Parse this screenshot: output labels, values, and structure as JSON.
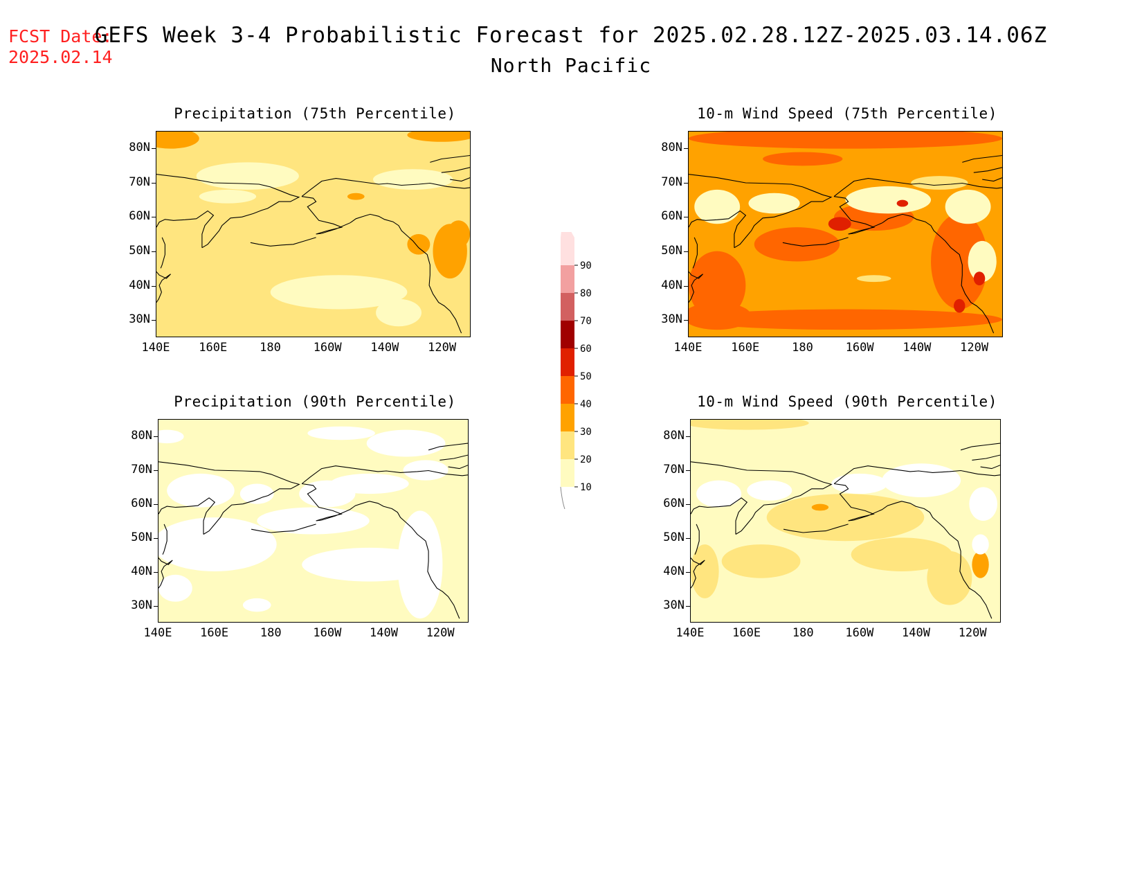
{
  "header": {
    "fcst_label": "FCST Date:",
    "fcst_date": "2025.02.14",
    "title": "GEFS Week 3-4 Probabilistic Forecast for 2025.02.28.12Z-2025.03.14.06Z",
    "region": "North Pacific"
  },
  "panels": [
    {
      "title": "Precipitation (75th Percentile)",
      "field": "precip75",
      "base_level": "20-30"
    },
    {
      "title": "10-m Wind Speed (75th Percentile)",
      "field": "wind75",
      "base_level": "30-40"
    },
    {
      "title": "Precipitation (90th Percentile)",
      "field": "precip90",
      "base_level": "10-20"
    },
    {
      "title": "10-m Wind Speed (90th Percentile)",
      "field": "wind90",
      "base_level": "20-30"
    }
  ],
  "lat_labels": [
    "80N",
    "70N",
    "60N",
    "50N",
    "40N",
    "30N"
  ],
  "lon_labels": [
    "140E",
    "160E",
    "180",
    "160W",
    "140W",
    "120W"
  ],
  "colorbar": {
    "levels": [
      "10",
      "20",
      "30",
      "40",
      "50",
      "60",
      "70",
      "80",
      "90"
    ],
    "colors": [
      "#fffbc0",
      "#ffe57f",
      "#ffa200",
      "#ff6600",
      "#e02000",
      "#a00000",
      "#d26060",
      "#f2a0a0",
      "#ffe0e0"
    ]
  }
}
